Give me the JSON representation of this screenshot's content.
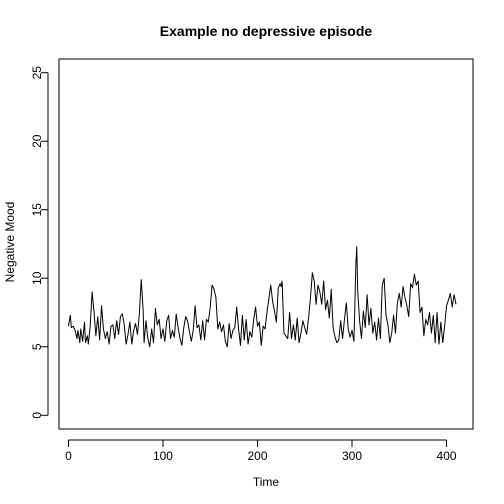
{
  "chart_data": {
    "type": "line",
    "title": "Example no depressive episode",
    "xlabel": "Time",
    "ylabel": "Negative Mood",
    "xlim": [
      -10,
      428
    ],
    "ylim": [
      -1,
      26
    ],
    "xticks": [
      0,
      100,
      200,
      300,
      400
    ],
    "yticks": [
      0,
      5,
      10,
      15,
      20,
      25
    ],
    "grid": false,
    "legend": "none",
    "series": [
      {
        "color": "#000000",
        "anchors": [
          [
            0,
            6.5
          ],
          [
            2,
            7.3
          ],
          [
            3,
            6.4
          ],
          [
            5,
            6.5
          ],
          [
            7,
            6.2
          ],
          [
            9,
            5.6
          ],
          [
            10,
            6.2
          ],
          [
            12,
            5.3
          ],
          [
            13,
            6.3
          ],
          [
            15,
            5.4
          ],
          [
            17,
            6.8
          ],
          [
            18,
            5.3
          ],
          [
            20,
            5.8
          ],
          [
            21,
            5.2
          ],
          [
            23,
            6.5
          ],
          [
            25,
            9.0
          ],
          [
            27,
            7.6
          ],
          [
            29,
            5.8
          ],
          [
            31,
            7.2
          ],
          [
            33,
            5.5
          ],
          [
            35,
            8.0
          ],
          [
            37,
            6.3
          ],
          [
            39,
            5.6
          ],
          [
            41,
            6.1
          ],
          [
            43,
            5.2
          ],
          [
            45,
            6.5
          ],
          [
            47,
            6.6
          ],
          [
            49,
            5.6
          ],
          [
            51,
            6.9
          ],
          [
            53,
            5.9
          ],
          [
            55,
            7.2
          ],
          [
            57,
            7.4
          ],
          [
            59,
            6.6
          ],
          [
            61,
            5.2
          ],
          [
            63,
            5.9
          ],
          [
            65,
            6.8
          ],
          [
            67,
            5.2
          ],
          [
            69,
            6.2
          ],
          [
            71,
            6.7
          ],
          [
            73,
            5.9
          ],
          [
            75,
            7.4
          ],
          [
            77,
            9.9
          ],
          [
            79,
            7.7
          ],
          [
            80,
            5.3
          ],
          [
            82,
            6.9
          ],
          [
            84,
            5.6
          ],
          [
            86,
            5.0
          ],
          [
            88,
            6.3
          ],
          [
            90,
            5.3
          ],
          [
            92,
            7.8
          ],
          [
            94,
            6.6
          ],
          [
            96,
            7.0
          ],
          [
            98,
            5.6
          ],
          [
            100,
            6.3
          ],
          [
            102,
            5.4
          ],
          [
            104,
            6.9
          ],
          [
            106,
            7.3
          ],
          [
            108,
            5.6
          ],
          [
            110,
            6.2
          ],
          [
            112,
            5.7
          ],
          [
            114,
            7.4
          ],
          [
            116,
            6.4
          ],
          [
            118,
            5.6
          ],
          [
            120,
            5.1
          ],
          [
            122,
            6.4
          ],
          [
            124,
            7.2
          ],
          [
            126,
            6.9
          ],
          [
            128,
            6.1
          ],
          [
            130,
            5.4
          ],
          [
            132,
            6.2
          ],
          [
            134,
            8.0
          ],
          [
            136,
            6.4
          ],
          [
            138,
            6.6
          ],
          [
            140,
            5.5
          ],
          [
            142,
            6.9
          ],
          [
            144,
            5.5
          ],
          [
            146,
            7.0
          ],
          [
            148,
            6.8
          ],
          [
            150,
            7.9
          ],
          [
            152,
            9.5
          ],
          [
            154,
            9.2
          ],
          [
            156,
            8.6
          ],
          [
            158,
            6.3
          ],
          [
            160,
            6.8
          ],
          [
            162,
            6.1
          ],
          [
            164,
            6.6
          ],
          [
            166,
            5.4
          ],
          [
            168,
            5.0
          ],
          [
            170,
            6.7
          ],
          [
            172,
            5.6
          ],
          [
            174,
            6.2
          ],
          [
            176,
            6.4
          ],
          [
            178,
            7.9
          ],
          [
            180,
            6.3
          ],
          [
            182,
            5.1
          ],
          [
            184,
            7.3
          ],
          [
            186,
            5.5
          ],
          [
            188,
            7.0
          ],
          [
            190,
            5.2
          ],
          [
            192,
            6.1
          ],
          [
            194,
            5.7
          ],
          [
            196,
            7.0
          ],
          [
            198,
            7.9
          ],
          [
            200,
            6.5
          ],
          [
            202,
            6.8
          ],
          [
            204,
            5.1
          ],
          [
            206,
            6.5
          ],
          [
            208,
            6.3
          ],
          [
            210,
            7.5
          ],
          [
            212,
            8.5
          ],
          [
            214,
            9.5
          ],
          [
            216,
            8.3
          ],
          [
            218,
            7.6
          ],
          [
            220,
            6.8
          ],
          [
            222,
            9.3
          ],
          [
            224,
            9.6
          ],
          [
            225,
            9.4
          ],
          [
            226,
            9.8
          ],
          [
            228,
            6.0
          ],
          [
            230,
            5.8
          ],
          [
            232,
            5.6
          ],
          [
            234,
            7.5
          ],
          [
            236,
            5.6
          ],
          [
            238,
            6.6
          ],
          [
            240,
            5.5
          ],
          [
            242,
            7.1
          ],
          [
            244,
            5.3
          ],
          [
            246,
            6.0
          ],
          [
            248,
            6.9
          ],
          [
            250,
            6.4
          ],
          [
            252,
            5.9
          ],
          [
            254,
            7.1
          ],
          [
            256,
            8.5
          ],
          [
            258,
            10.4
          ],
          [
            260,
            9.8
          ],
          [
            262,
            8.1
          ],
          [
            264,
            9.5
          ],
          [
            266,
            9.0
          ],
          [
            268,
            8.1
          ],
          [
            270,
            9.8
          ],
          [
            272,
            7.7
          ],
          [
            274,
            8.4
          ],
          [
            276,
            7.1
          ],
          [
            278,
            9.2
          ],
          [
            280,
            6.4
          ],
          [
            282,
            5.7
          ],
          [
            284,
            5.3
          ],
          [
            286,
            5.5
          ],
          [
            288,
            6.9
          ],
          [
            290,
            5.6
          ],
          [
            292,
            7.0
          ],
          [
            294,
            8.2
          ],
          [
            296,
            6.3
          ],
          [
            298,
            5.7
          ],
          [
            300,
            6.2
          ],
          [
            302,
            5.4
          ],
          [
            303,
            7.9
          ],
          [
            304,
            10.9
          ],
          [
            305,
            12.3
          ],
          [
            306,
            9.1
          ],
          [
            308,
            6.9
          ],
          [
            310,
            5.6
          ],
          [
            312,
            7.6
          ],
          [
            314,
            6.4
          ],
          [
            316,
            8.8
          ],
          [
            318,
            6.6
          ],
          [
            320,
            7.8
          ],
          [
            322,
            6.0
          ],
          [
            324,
            6.8
          ],
          [
            326,
            5.5
          ],
          [
            328,
            7.1
          ],
          [
            330,
            5.6
          ],
          [
            332,
            9.5
          ],
          [
            334,
            10.0
          ],
          [
            336,
            7.3
          ],
          [
            338,
            6.6
          ],
          [
            340,
            5.3
          ],
          [
            342,
            6.0
          ],
          [
            344,
            7.3
          ],
          [
            346,
            6.0
          ],
          [
            348,
            8.2
          ],
          [
            350,
            8.9
          ],
          [
            352,
            7.9
          ],
          [
            354,
            9.4
          ],
          [
            356,
            8.6
          ],
          [
            358,
            8.0
          ],
          [
            360,
            7.2
          ],
          [
            362,
            9.6
          ],
          [
            364,
            9.3
          ],
          [
            366,
            10.3
          ],
          [
            368,
            9.5
          ],
          [
            370,
            9.8
          ],
          [
            372,
            7.5
          ],
          [
            374,
            7.9
          ],
          [
            376,
            5.8
          ],
          [
            378,
            7.0
          ],
          [
            380,
            6.6
          ],
          [
            382,
            7.5
          ],
          [
            384,
            6.0
          ],
          [
            386,
            7.3
          ],
          [
            388,
            5.3
          ],
          [
            390,
            7.5
          ],
          [
            392,
            5.2
          ],
          [
            394,
            6.8
          ],
          [
            396,
            5.3
          ],
          [
            398,
            6.5
          ],
          [
            400,
            8.0
          ],
          [
            402,
            8.4
          ],
          [
            404,
            8.9
          ],
          [
            406,
            7.9
          ],
          [
            408,
            8.8
          ],
          [
            410,
            8.1
          ]
        ]
      }
    ]
  }
}
